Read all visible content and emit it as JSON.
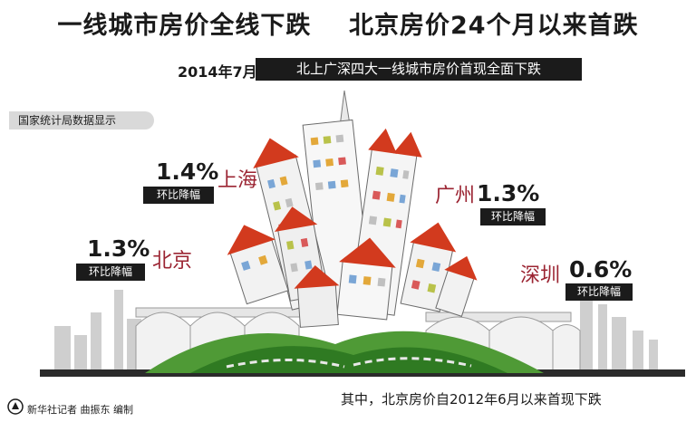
{
  "header": {
    "title": "一线城市房价全线下跌    北京房价24个月以来首跌",
    "date": "2014年7月",
    "subtitle": "北上广深四大一线城市房价首现全面下跌"
  },
  "source_label": "国家统计局数据显示",
  "indicator_label": "环比降幅",
  "cities": [
    {
      "name": "上海",
      "value": "1.4%",
      "tag": "环比降幅"
    },
    {
      "name": "广州",
      "value": "1.3%",
      "tag": "环比降幅"
    },
    {
      "name": "北京",
      "value": "1.3%",
      "tag": "环比降幅"
    },
    {
      "name": "深圳",
      "value": "0.6%",
      "tag": "环比降幅"
    }
  ],
  "footnote": "其中，北京房价自2012年6月以来首现下跌",
  "credit": "新华社记者  曲振东  编制",
  "colors": {
    "accent": "#9b2432",
    "roof": "#d23a1e",
    "grass": "#3d8a2a",
    "dark": "#1b1b1b"
  }
}
